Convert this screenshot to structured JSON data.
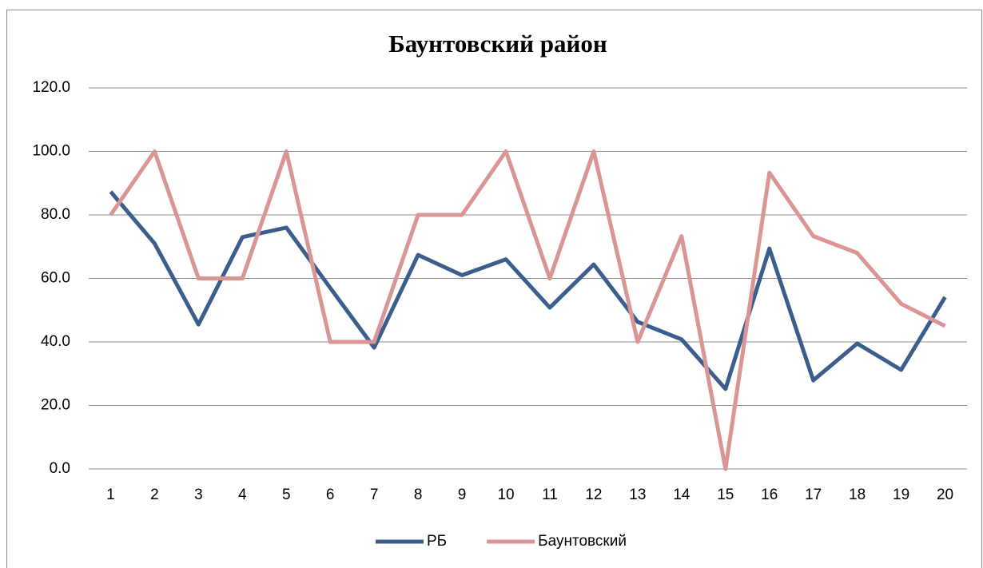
{
  "chart_data": {
    "type": "line",
    "title": "Баунтовский район",
    "categories": [
      "1",
      "2",
      "3",
      "4",
      "5",
      "6",
      "7",
      "8",
      "9",
      "10",
      "11",
      "12",
      "13",
      "14",
      "15",
      "16",
      "17",
      "18",
      "19",
      "20"
    ],
    "series": [
      {
        "name": "РБ",
        "color": "#3b5e8c",
        "values": [
          87.3,
          71,
          45.5,
          73,
          76,
          57,
          38.2,
          67.4,
          61,
          66,
          50.8,
          64.4,
          46.3,
          40.8,
          25.2,
          69.4,
          27.9,
          39.5,
          31.2,
          54.1
        ]
      },
      {
        "name": "Баунтовский",
        "color": "#d99694",
        "values": [
          80,
          100,
          60,
          60,
          100,
          40,
          40,
          80,
          80,
          100,
          60,
          100,
          40,
          73.3,
          0,
          93.3,
          73.3,
          68,
          52,
          45
        ]
      }
    ],
    "ylim": [
      0,
      120
    ],
    "yticks": [
      {
        "value": 0,
        "label": "0.0"
      },
      {
        "value": 20,
        "label": "20.0"
      },
      {
        "value": 40,
        "label": "40.0"
      },
      {
        "value": 60,
        "label": "60.0"
      },
      {
        "value": 80,
        "label": "80.0"
      },
      {
        "value": 100,
        "label": "100.0"
      },
      {
        "value": 120,
        "label": "120.0"
      }
    ],
    "grid": true,
    "legend": "bottom"
  }
}
